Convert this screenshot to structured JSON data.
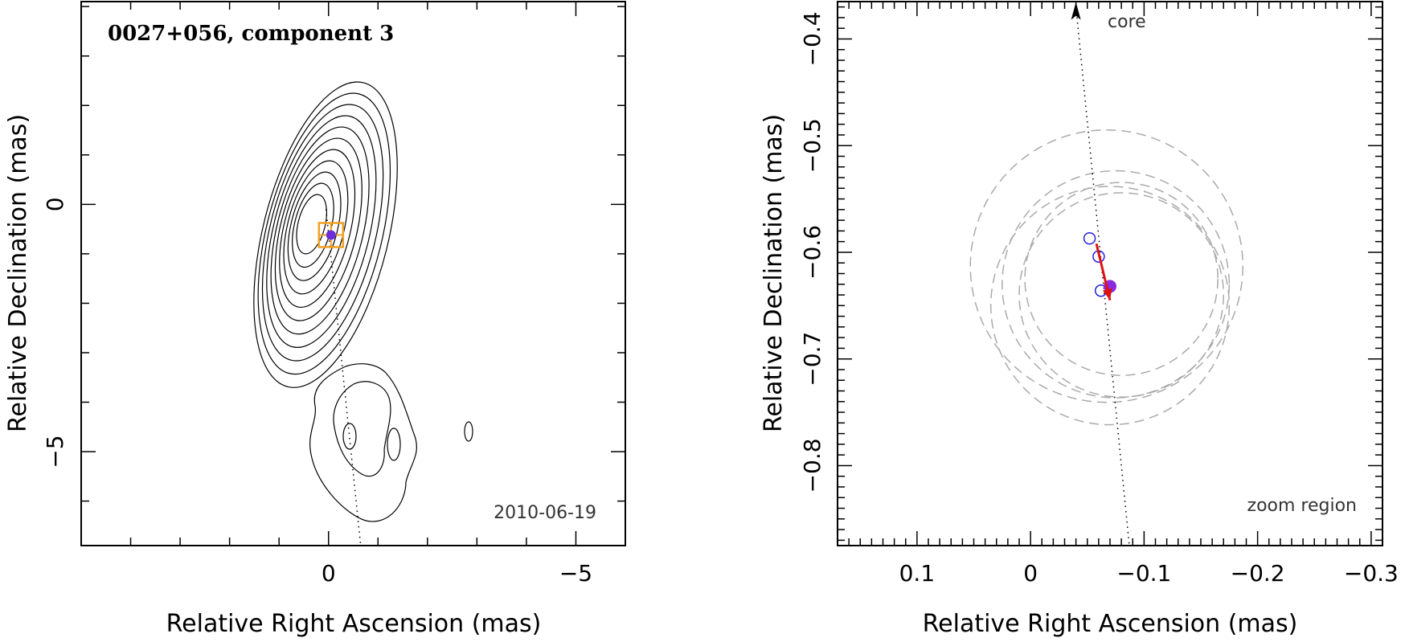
{
  "chart_data": [
    {
      "type": "contour",
      "title": "0027+056, component 3",
      "annotation": "2010-06-19",
      "xlabel": "Relative Right Ascension (mas)",
      "ylabel": "Relative Declination (mas)",
      "xlim": [
        5,
        -6
      ],
      "ylim": [
        -6.9,
        4.1
      ],
      "xticks": [
        0,
        -5
      ],
      "xtick_labels": [
        "0",
        "−5"
      ],
      "yticks": [
        0,
        -5
      ],
      "ytick_labels": [
        "0",
        "−5"
      ],
      "component_position": {
        "x": -0.05,
        "y": -0.62
      },
      "core_direction_line": [
        [
          0.05,
          -0.1
        ],
        [
          -0.65,
          -6.9
        ]
      ],
      "colors": {
        "contour": "#000000",
        "box": "#f0a020",
        "component": "#6a2fd6"
      }
    },
    {
      "type": "scatter",
      "annotation_core": "core",
      "annotation_zoom": "zoom region",
      "xlabel": "Relative Right Ascension (mas)",
      "ylabel": "Relative Declination (mas)",
      "xlim": [
        0.17,
        -0.31
      ],
      "ylim": [
        -0.875,
        -0.365
      ],
      "xticks": [
        0.1,
        0,
        -0.1,
        -0.2,
        -0.3
      ],
      "xtick_labels": [
        "0.1",
        "0",
        "−0.1",
        "−0.2",
        "−0.3"
      ],
      "yticks": [
        -0.4,
        -0.5,
        -0.6,
        -0.7,
        -0.8
      ],
      "ytick_labels": [
        "−0.4",
        "−0.5",
        "−0.6",
        "−0.7",
        "−0.8"
      ],
      "epoch_positions": [
        {
          "x": -0.052,
          "y": -0.587
        },
        {
          "x": -0.06,
          "y": -0.604
        },
        {
          "x": -0.062,
          "y": -0.636
        }
      ],
      "current_position": {
        "x": -0.07,
        "y": -0.632
      },
      "motion_vector": {
        "from": [
          -0.058,
          -0.592
        ],
        "to": [
          -0.07,
          -0.645
        ]
      },
      "core_direction_line": [
        [
          -0.04,
          -0.37
        ],
        [
          -0.087,
          -0.875
        ]
      ],
      "error_circles": [
        {
          "cx": -0.067,
          "cy": -0.613,
          "r": 0.12
        },
        {
          "cx": -0.075,
          "cy": -0.63,
          "r": 0.1
        },
        {
          "cx": -0.08,
          "cy": -0.64,
          "r": 0.09
        },
        {
          "cx": -0.08,
          "cy": -0.625,
          "r": 0.085
        },
        {
          "cx": -0.07,
          "cy": -0.65,
          "r": 0.105
        }
      ],
      "colors": {
        "open_marker": "#2222dd",
        "filled_marker": "#8a2be2",
        "arrow": "#e01010",
        "circle": "#aaaaaa"
      }
    }
  ]
}
